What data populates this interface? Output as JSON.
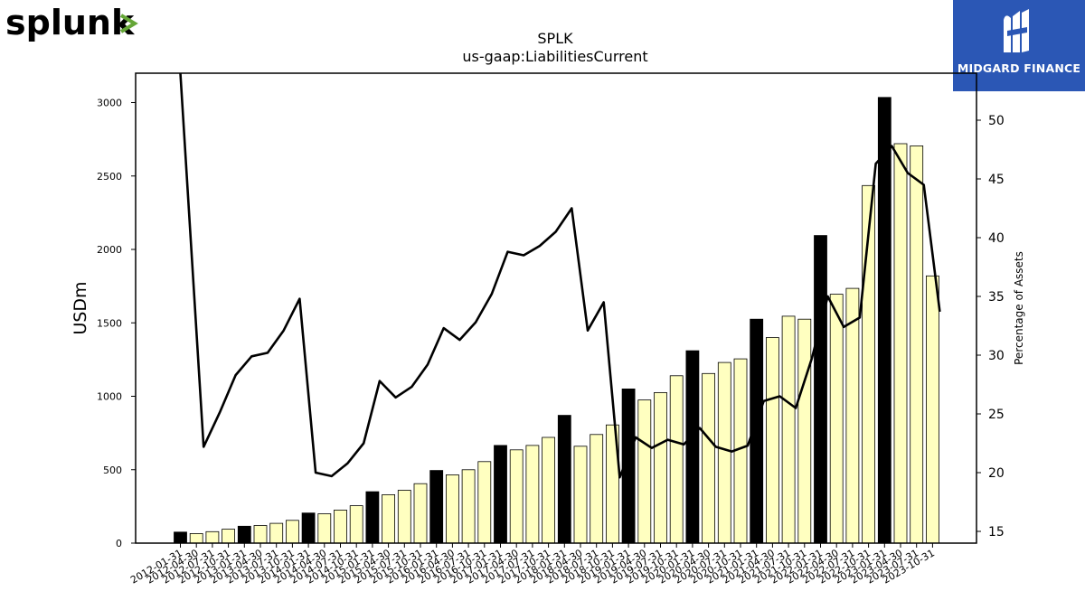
{
  "logos": {
    "left_brand": "splunk",
    "left_brand_color": "#000000",
    "left_accent_color": "#65a637",
    "right_brand": "MIDGARD FINANCE",
    "right_bg_color": "#2b57b5"
  },
  "chart_data": {
    "type": "bar",
    "title": "SPLK",
    "subtitle": "us-gaap:LiabilitiesCurrent",
    "ylabel": "USDm",
    "y2label": "Percentage of Assets",
    "ylim": [
      0,
      3200
    ],
    "y2lim": [
      14,
      54
    ],
    "yticks": [
      0,
      500,
      1000,
      1500,
      2000,
      2500,
      3000
    ],
    "y2ticks": [
      15,
      20,
      25,
      30,
      35,
      40,
      45,
      50
    ],
    "colors": {
      "q4_bar": "#000000",
      "other_bar": "#ffffc0",
      "line": "#000000"
    },
    "categories": [
      "2012-01-31",
      "2012-04-30",
      "2012-07-31",
      "2012-10-31",
      "2013-01-31",
      "2013-04-30",
      "2013-07-31",
      "2013-10-31",
      "2014-01-31",
      "2014-04-30",
      "2014-07-31",
      "2014-10-31",
      "2015-01-31",
      "2015-04-30",
      "2015-07-31",
      "2015-10-31",
      "2016-01-31",
      "2016-04-30",
      "2016-07-31",
      "2016-10-31",
      "2017-01-31",
      "2017-04-30",
      "2017-07-31",
      "2017-10-31",
      "2018-01-31",
      "2018-04-30",
      "2018-07-31",
      "2018-10-31",
      "2019-01-31",
      "2019-04-30",
      "2019-07-31",
      "2019-10-31",
      "2020-01-31",
      "2020-04-30",
      "2020-07-31",
      "2020-10-31",
      "2021-01-31",
      "2021-04-30",
      "2021-07-31",
      "2021-10-31",
      "2022-01-31",
      "2022-04-30",
      "2022-07-31",
      "2022-10-31",
      "2023-01-31",
      "2023-04-30",
      "2023-07-31",
      "2023-10-31"
    ],
    "series": [
      {
        "kind": "bar",
        "values": [
          75,
          65,
          78,
          95,
          115,
          120,
          135,
          155,
          205,
          200,
          225,
          255,
          350,
          330,
          360,
          405,
          495,
          465,
          500,
          555,
          665,
          635,
          665,
          720,
          870,
          660,
          740,
          805,
          1050,
          975,
          1025,
          1140,
          1310,
          1155,
          1230,
          1255,
          1525,
          1400,
          1545,
          1525,
          2095,
          1695,
          1735,
          2435,
          3035,
          2720,
          2705,
          1820
        ]
      },
      {
        "kind": "line",
        "axis": "right",
        "values": [
          null,
          22.2,
          25.1,
          28.3,
          29.9,
          30.2,
          32.1,
          34.8,
          20.0,
          19.7,
          20.8,
          22.5,
          27.8,
          26.4,
          27.3,
          29.2,
          32.3,
          31.3,
          32.8,
          35.2,
          38.8,
          38.5,
          39.3,
          40.5,
          42.5,
          32.1,
          34.5,
          19.6,
          23.0,
          22.1,
          22.8,
          22.4,
          23.8,
          22.2,
          21.8,
          22.3,
          26.1,
          26.5,
          25.5,
          29.7,
          35.0,
          32.4,
          33.2,
          46.3,
          47.8,
          45.5,
          44.5,
          33.7
        ]
      }
    ],
    "line_start_value": 54,
    "grid": false
  }
}
